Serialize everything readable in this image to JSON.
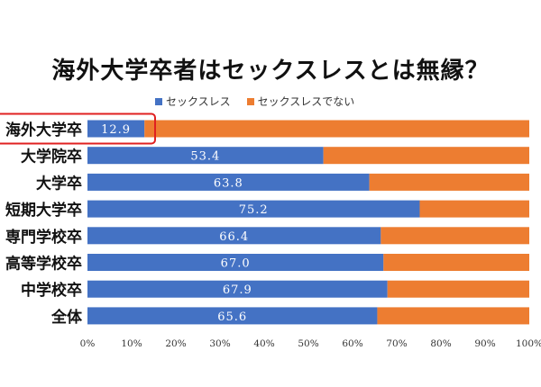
{
  "chart_data": {
    "type": "bar",
    "orientation": "horizontal",
    "stacked": true,
    "title": "海外大学卒者はセックスレスとは無縁？",
    "categories": [
      "海外大学卒",
      "大学院卒",
      "大学卒",
      "短期大学卒",
      "専門学校卒",
      "高等学校卒",
      "中学校卒",
      "全体"
    ],
    "series": [
      {
        "name": "セックスレス",
        "color": "#4472c4",
        "values": [
          12.9,
          53.4,
          63.8,
          75.2,
          66.4,
          67.0,
          67.9,
          65.6
        ]
      },
      {
        "name": "セックスレスでない",
        "color": "#ed7d31",
        "values": [
          87.1,
          46.6,
          36.2,
          24.8,
          33.6,
          33.0,
          32.1,
          34.4
        ]
      }
    ],
    "data_labels": [
      "12.9",
      "53.4",
      "63.8",
      "75.2",
      "66.4",
      "67.0",
      "67.9",
      "65.6"
    ],
    "xlim": [
      0,
      100
    ],
    "x_ticks": [
      "0%",
      "10%",
      "20%",
      "30%",
      "40%",
      "50%",
      "60%",
      "70%",
      "80%",
      "90%",
      "100%"
    ],
    "legend_position": "top",
    "highlight_category": "海外大学卒",
    "highlight_color": "#e02020",
    "xlabel": "",
    "ylabel": ""
  }
}
